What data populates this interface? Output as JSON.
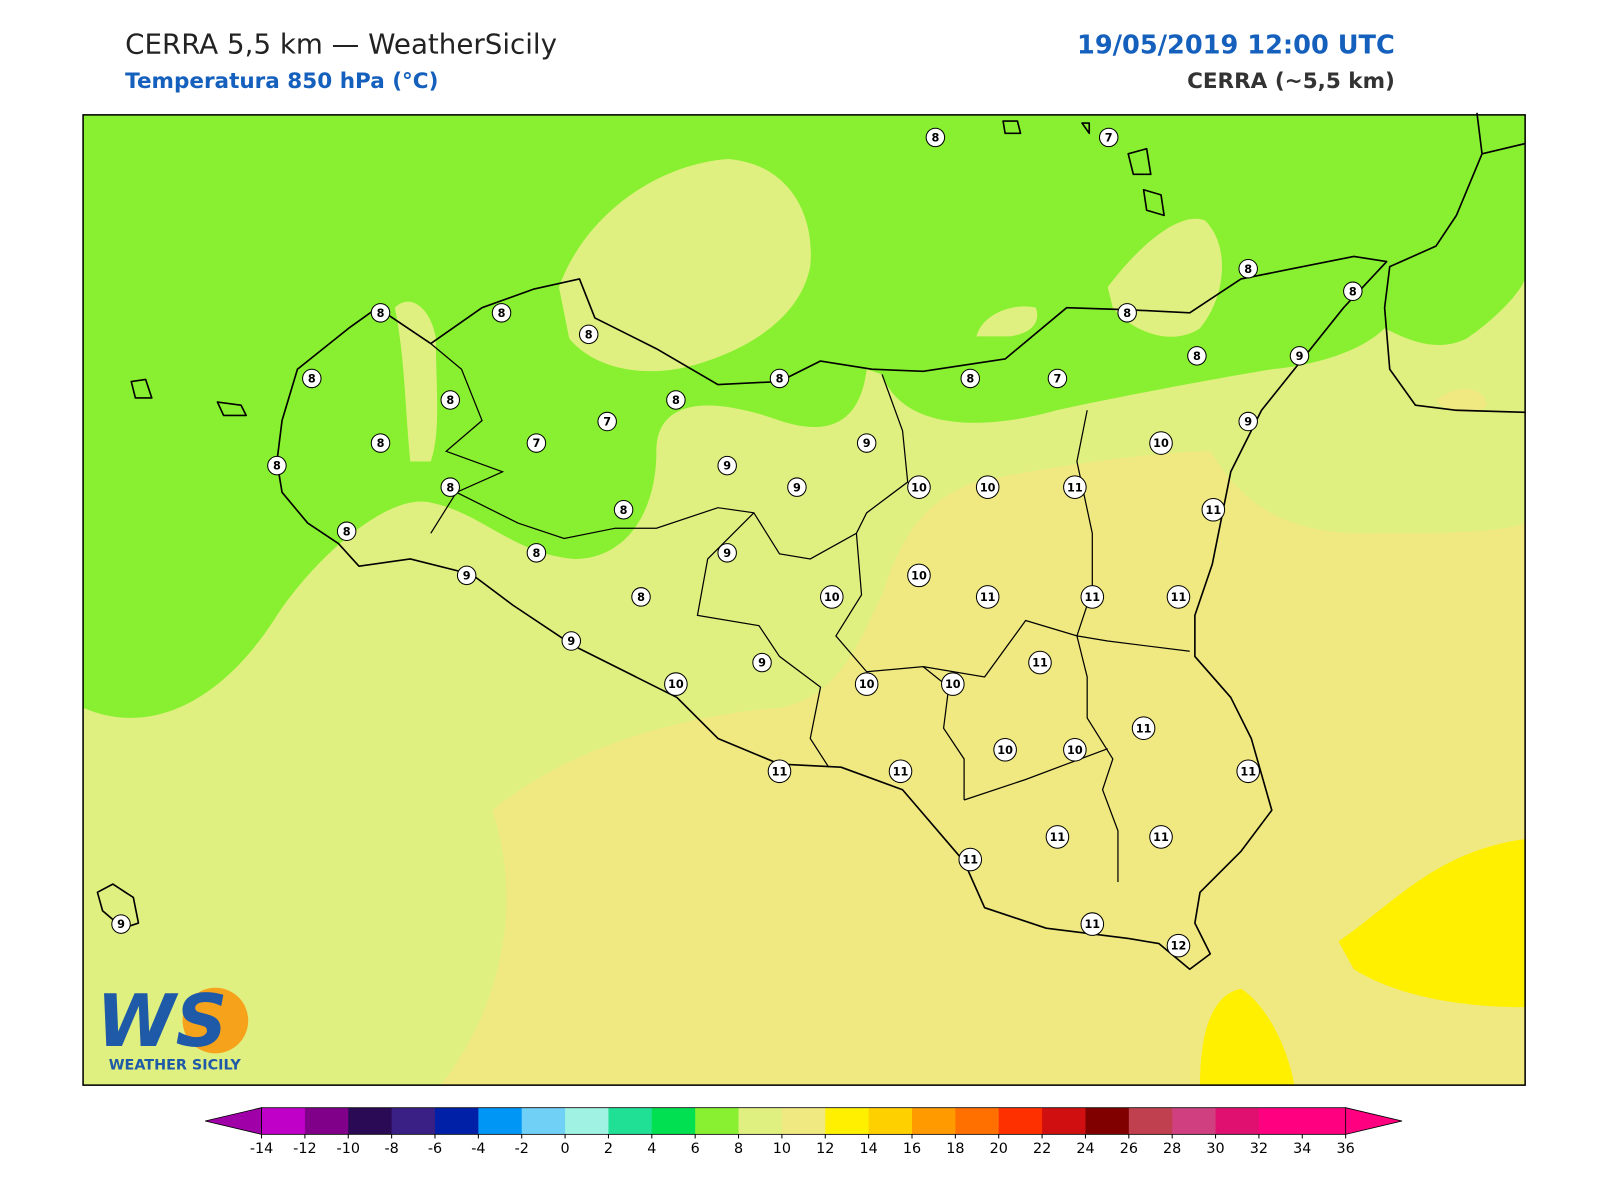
{
  "header": {
    "title": "CERRA 5,5 km — WeatherSicily",
    "subtitle": "Temperatura 850 hPa (°C)",
    "datetime": "19/05/2019 12:00 UTC",
    "model": "CERRA (~5,5 km)"
  },
  "stations": [
    8,
    7,
    8,
    8,
    8,
    8,
    8,
    8,
    8,
    9,
    8,
    8,
    8,
    7,
    8,
    8,
    7,
    9,
    8,
    7,
    9,
    10,
    8,
    9,
    9,
    10,
    10,
    11,
    8,
    8,
    11,
    8,
    8,
    9,
    9,
    10,
    8,
    10,
    11,
    11,
    11,
    9,
    11,
    9,
    10,
    10,
    10,
    11,
    10,
    10,
    11,
    11,
    11,
    11,
    11,
    11,
    11,
    12,
    9
  ],
  "logo": {
    "letters": "WS",
    "name": "WEATHER SICILY"
  },
  "colorbar": {
    "under_color": "#a000a8",
    "over_color": "#ff0080",
    "colors": [
      "#c000c8",
      "#80008a",
      "#2a0a55",
      "#3a2085",
      "#0020a8",
      "#0096f5",
      "#70d0f5",
      "#a0f2e2",
      "#20e095",
      "#00e050",
      "#88f030",
      "#e0f080",
      "#f0e880",
      "#fff000",
      "#ffd000",
      "#ff9a00",
      "#ff7000",
      "#ff3000",
      "#d01010",
      "#800000",
      "#c04050",
      "#d04080",
      "#e01070",
      "#ff0080",
      "#ff0080"
    ],
    "ticks": [
      -14,
      -12,
      -10,
      -8,
      -6,
      -4,
      -2,
      0,
      2,
      4,
      6,
      8,
      10,
      12,
      14,
      16,
      18,
      20,
      22,
      24,
      26,
      28,
      30,
      32,
      34,
      36
    ]
  }
}
